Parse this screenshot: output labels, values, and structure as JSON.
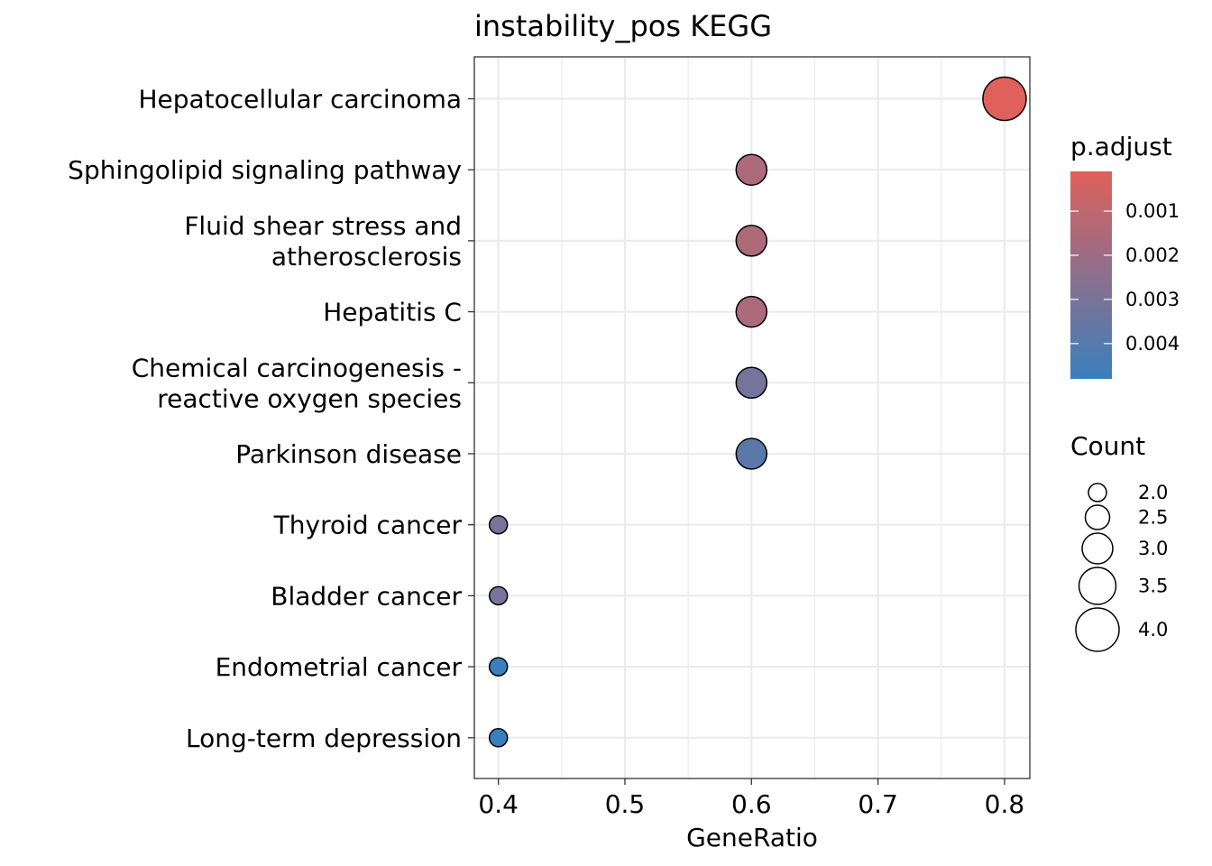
{
  "chart_data": {
    "type": "scatter",
    "title": "instability_pos KEGG",
    "xlabel": "GeneRatio",
    "ylabel": "",
    "xlim": [
      0.381,
      0.82
    ],
    "x_ticks": [
      "0.4",
      "0.5",
      "0.6",
      "0.7",
      "0.8"
    ],
    "x_tick_values": [
      0.4,
      0.5,
      0.6,
      0.7,
      0.8
    ],
    "grid": true,
    "points": [
      {
        "label": "Hepatocellular carcinoma",
        "lines": [
          "Hepatocellular carcinoma"
        ],
        "gene_ratio": 0.8,
        "count": 4,
        "p_adjust": 0.0001
      },
      {
        "label": "Sphingolipid signaling pathway",
        "lines": [
          "Sphingolipid signaling pathway"
        ],
        "gene_ratio": 0.6,
        "count": 3,
        "p_adjust": 0.00155
      },
      {
        "label": "Fluid shear stress and atherosclerosis",
        "lines": [
          "Fluid shear stress and",
          "atherosclerosis"
        ],
        "gene_ratio": 0.6,
        "count": 3,
        "p_adjust": 0.00155
      },
      {
        "label": "Hepatitis C",
        "lines": [
          "Hepatitis C"
        ],
        "gene_ratio": 0.6,
        "count": 3,
        "p_adjust": 0.00155
      },
      {
        "label": "Chemical carcinogenesis - reactive oxygen species",
        "lines": [
          "Chemical carcinogenesis -",
          "reactive oxygen species"
        ],
        "gene_ratio": 0.6,
        "count": 3,
        "p_adjust": 0.0031
      },
      {
        "label": "Parkinson disease",
        "lines": [
          "Parkinson disease"
        ],
        "gene_ratio": 0.6,
        "count": 3,
        "p_adjust": 0.0039
      },
      {
        "label": "Thyroid cancer",
        "lines": [
          "Thyroid cancer"
        ],
        "gene_ratio": 0.4,
        "count": 2,
        "p_adjust": 0.0031
      },
      {
        "label": "Bladder cancer",
        "lines": [
          "Bladder cancer"
        ],
        "gene_ratio": 0.4,
        "count": 2,
        "p_adjust": 0.0031
      },
      {
        "label": "Endometrial cancer",
        "lines": [
          "Endometrial cancer"
        ],
        "gene_ratio": 0.4,
        "count": 2,
        "p_adjust": 0.0048
      },
      {
        "label": "Long-term depression",
        "lines": [
          "Long-term depression"
        ],
        "gene_ratio": 0.4,
        "count": 2,
        "p_adjust": 0.0048
      }
    ],
    "color_legend": {
      "title": "p.adjust",
      "low_color": "#E0605C",
      "high_color": "#3A7FBD",
      "range": [
        0.0001,
        0.0048
      ],
      "breaks": [
        0.001,
        0.002,
        0.003,
        0.004
      ],
      "break_labels": [
        "0.001",
        "0.002",
        "0.003",
        "0.004"
      ],
      "placement": "right"
    },
    "size_legend": {
      "title": "Count",
      "breaks": [
        2.0,
        2.5,
        3.0,
        3.5,
        4.0
      ],
      "break_labels": [
        "2.0",
        "2.5",
        "3.0",
        "3.5",
        "4.0"
      ],
      "placement": "right"
    }
  }
}
